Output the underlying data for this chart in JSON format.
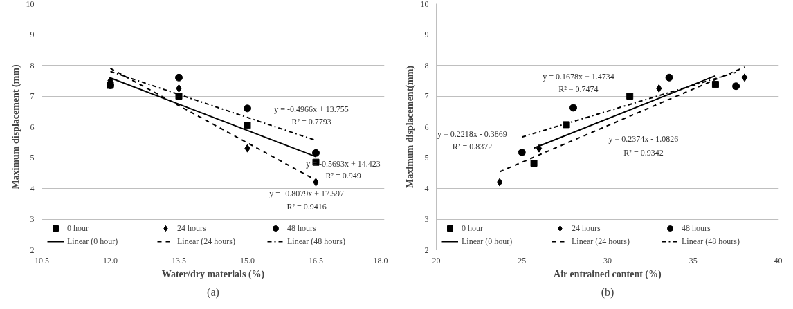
{
  "chart_data": [
    {
      "type": "scatter",
      "xlabel": "Water/dry materials (%)",
      "ylabel": "Maximum displacement (mm)",
      "xlim": [
        10.5,
        18
      ],
      "xticks": [
        10.5,
        {
          "value": 12,
          "label": "12.0"
        },
        13.5,
        {
          "value": 15,
          "label": "15.0"
        },
        16.5,
        {
          "value": 18,
          "label": "18.0"
        }
      ],
      "ylim": [
        2,
        10
      ],
      "yticks": [
        2,
        3,
        4,
        5,
        6,
        7,
        8,
        9,
        10
      ],
      "grid": "y",
      "legend": "bottom",
      "series": [
        {
          "name": "0 hour",
          "color": "#000000",
          "marker": "square",
          "x": [
            12,
            13.5,
            15,
            16.5
          ],
          "values": [
            7.35,
            7.0,
            6.05,
            4.85
          ]
        },
        {
          "name": "24 hours",
          "color": "#000000",
          "marker": "diamond",
          "x": [
            12,
            13.5,
            15,
            16.5
          ],
          "values": [
            7.5,
            7.25,
            5.3,
            4.2
          ]
        },
        {
          "name": "48 hours",
          "color": "#000000",
          "marker": "circle",
          "x": [
            12,
            13.5,
            15,
            16.5
          ],
          "values": [
            7.35,
            7.6,
            6.6,
            5.15
          ]
        },
        {
          "name": "Linear (0 hour)",
          "type": "line",
          "color": "#000000",
          "line_style": "solid",
          "x": [
            12,
            16.5
          ],
          "values": [
            7.59,
            5.03
          ]
        },
        {
          "name": "Linear (24 hours)",
          "type": "line",
          "color": "#000000",
          "line_style": "dashed",
          "x": [
            12,
            16.5
          ],
          "values": [
            7.9,
            4.27
          ]
        },
        {
          "name": "Linear (48 hours)",
          "type": "line",
          "color": "#000000",
          "line_style": "dashdot",
          "x": [
            12,
            16.5
          ],
          "values": [
            7.8,
            5.56
          ]
        }
      ],
      "annotations": [
        "y = -0.4966x + 13.755",
        "R² = 0.7793",
        "y = -0.5693x + 14.423",
        "R² = 0.949",
        "y = -0.8079x + 17.597",
        "R² = 0.9416",
        "(a)"
      ]
    },
    {
      "type": "scatter",
      "xlabel": "Air entrained content (%)",
      "ylabel": "Maximum displacement(mm)",
      "xlim": [
        20,
        40
      ],
      "xticks": [
        20,
        25,
        30,
        35,
        40
      ],
      "ylim": [
        2,
        10
      ],
      "yticks": [
        2,
        3,
        4,
        5,
        6,
        7,
        8,
        9,
        10
      ],
      "grid": "y",
      "legend": "bottom",
      "series": [
        {
          "name": "0 hour",
          "color": "#000000",
          "marker": "square",
          "x": [
            25.7,
            27.6,
            31.3,
            36.3
          ],
          "values": [
            4.82,
            6.07,
            7.0,
            7.38
          ]
        },
        {
          "name": "24 hours",
          "color": "#000000",
          "marker": "diamond",
          "x": [
            23.7,
            26.0,
            33.0,
            38.0
          ],
          "values": [
            4.2,
            5.3,
            7.25,
            7.6
          ]
        },
        {
          "name": "48 hours",
          "color": "#000000",
          "marker": "circle",
          "x": [
            25.0,
            28.0,
            33.6,
            37.5
          ],
          "values": [
            5.17,
            6.62,
            7.6,
            7.32
          ]
        },
        {
          "name": "Linear (0 hour)",
          "type": "line",
          "color": "#000000",
          "line_style": "solid",
          "x": [
            25.7,
            36.3
          ],
          "values": [
            5.31,
            7.66
          ]
        },
        {
          "name": "Linear (24 hours)",
          "type": "line",
          "color": "#000000",
          "line_style": "dashed",
          "x": [
            23.7,
            38.0
          ],
          "values": [
            4.54,
            7.94
          ]
        },
        {
          "name": "Linear (48 hours)",
          "type": "line",
          "color": "#000000",
          "line_style": "dashdot",
          "x": [
            25.0,
            37.5
          ],
          "values": [
            5.67,
            7.77
          ]
        }
      ],
      "annotations": [
        "y = 0.1678x + 1.4734",
        "R² = 0.7474",
        "y = 0.2218x - 0.3869",
        "R² = 0.8372",
        "y = 0.2374x - 1.0826",
        "R² = 0.9342",
        "(b)"
      ]
    }
  ]
}
